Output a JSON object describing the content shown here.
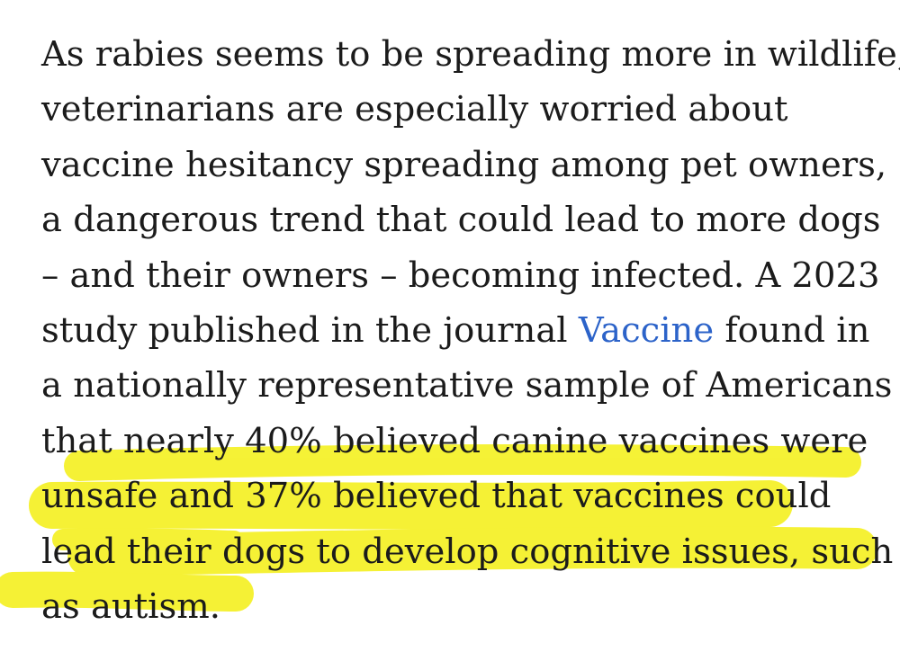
{
  "article": {
    "lines": [
      "As rabies seems to be spreading more in wildlife,",
      "veterinarians are especially worried about",
      "vaccine hesitancy spreading among pet owners,",
      "a dangerous trend that could lead to more dogs",
      "– and their owners – becoming infected. A 2023",
      {
        "before": "study published in the journal ",
        "link": "Vaccine",
        "after": " found in"
      },
      "a nationally representative sample of Americans",
      "that nearly 40% believed canine vaccines were",
      "unsafe and 37% believed that vaccines could",
      "lead their dogs to develop cognitive issues, such",
      "as autism."
    ]
  },
  "colors": {
    "text": "#1b1b1b",
    "link": "#2c63c9",
    "highlighter": "#f4f01a"
  }
}
